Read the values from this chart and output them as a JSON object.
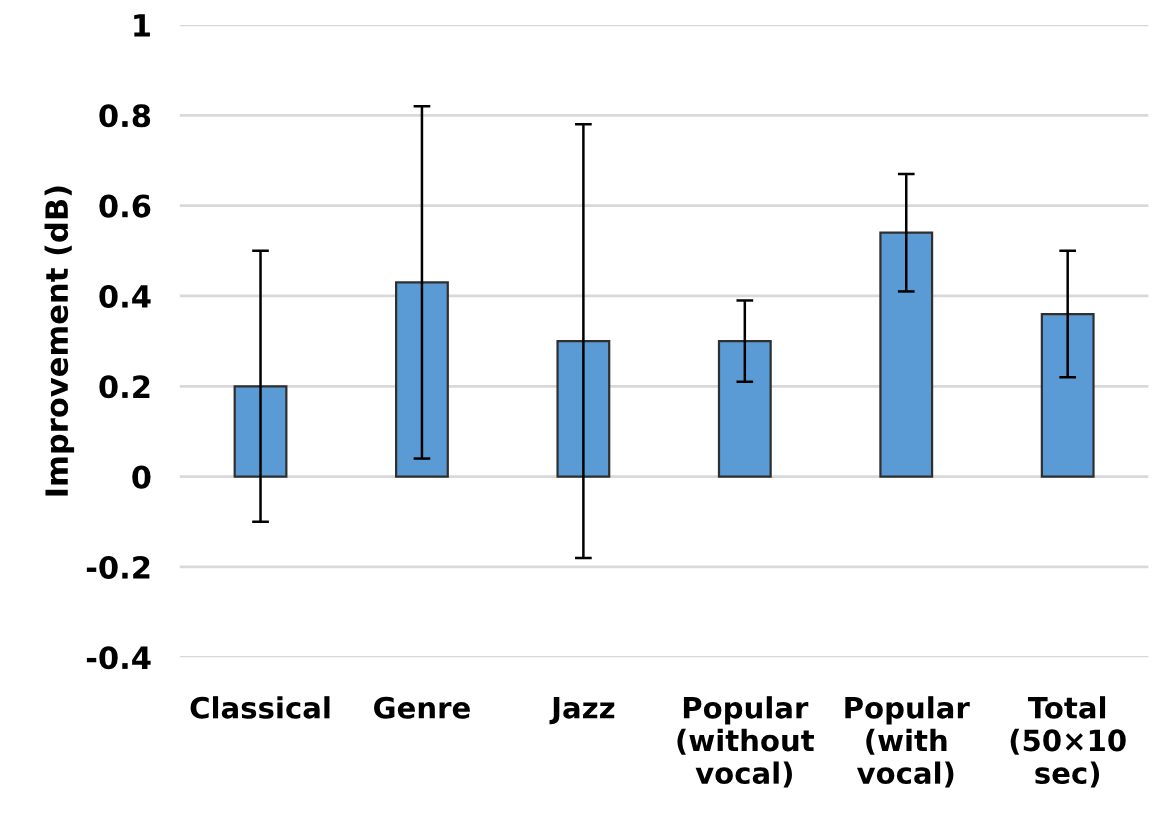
{
  "chart_data": {
    "type": "bar",
    "ylabel": "Improvement (dB)",
    "categories": [
      "Classical",
      "Genre",
      "Jazz",
      "Popular\n(without\nvocal)",
      "Popular\n(with\nvocal)",
      "Total\n(50×10\nsec)"
    ],
    "values": [
      0.2,
      0.43,
      0.3,
      0.3,
      0.54,
      0.36
    ],
    "errors": [
      0.3,
      0.39,
      0.48,
      0.09,
      0.13,
      0.14
    ],
    "color": "#5b9bd5",
    "ylim": [
      -0.4,
      1
    ],
    "yticks": [
      -0.4,
      -0.2,
      0,
      0.2,
      0.4,
      0.6,
      0.8,
      1
    ],
    "grid": "y"
  }
}
